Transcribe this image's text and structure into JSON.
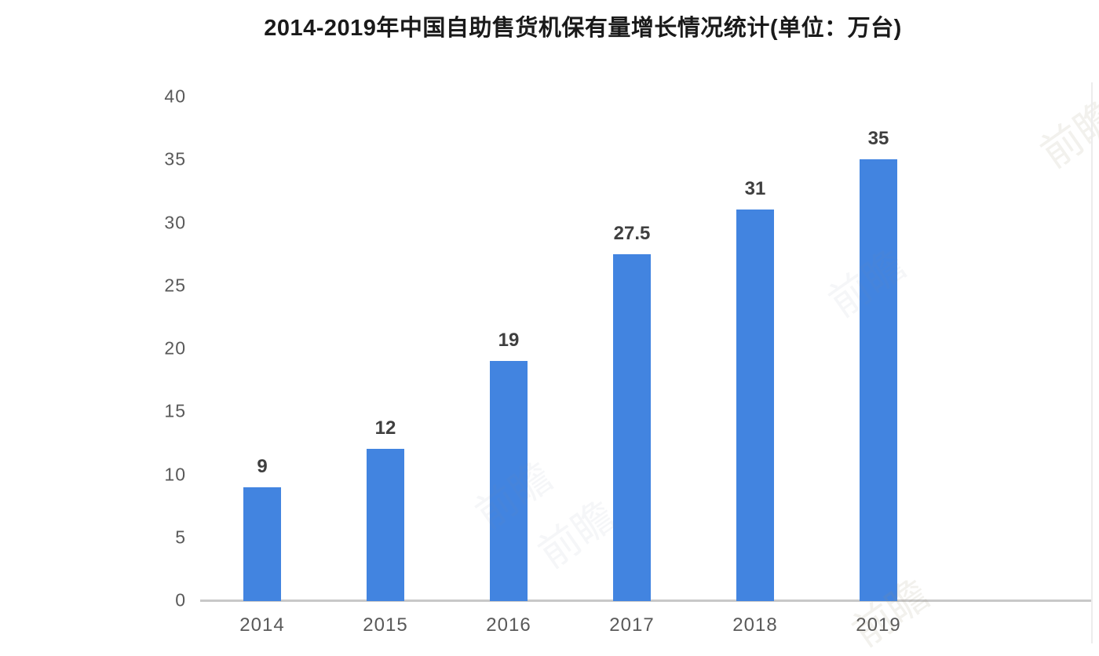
{
  "title": "2014-2019年中国自助售货机保有量增长情况统计(单位：万台)",
  "watermark_text": "前瞻",
  "chart_data": {
    "type": "bar",
    "title": "2014-2019年中国自助售货机保有量增长情况统计(单位：万台)",
    "categories": [
      "2014",
      "2015",
      "2016",
      "2017",
      "2018",
      "2019"
    ],
    "values": [
      9,
      12,
      19,
      27.5,
      31,
      35
    ],
    "value_labels": [
      "9",
      "12",
      "19",
      "27.5",
      "31",
      "35"
    ],
    "xlabel": "",
    "ylabel": "",
    "unit": "万台",
    "ylim": [
      0,
      40
    ],
    "yticks": [
      0,
      5,
      10,
      15,
      20,
      25,
      30,
      35,
      40
    ],
    "grid": false,
    "legend_position": "none",
    "bar_color": "#4284E0",
    "value_label_color": "#3f3f3f",
    "axis_text_color": "#595959",
    "baseline_color": "#c8c8c8",
    "background_color": "#ffffff",
    "title_color": "#1a1a1a"
  }
}
